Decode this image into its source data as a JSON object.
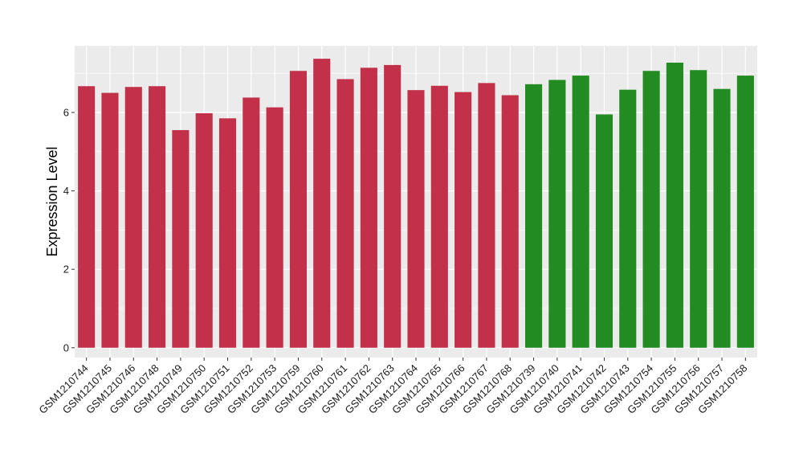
{
  "chart_data": {
    "type": "bar",
    "ylabel": "Expression Level",
    "xlabel": "",
    "title": "",
    "ylim": [
      -0.25,
      7.7
    ],
    "yticks": [
      0,
      2,
      4,
      6
    ],
    "grid": true,
    "legend": "none",
    "categories": [
      "GSM1210744",
      "GSM1210745",
      "GSM1210746",
      "GSM1210748",
      "GSM1210749",
      "GSM1210750",
      "GSM1210751",
      "GSM1210752",
      "GSM1210753",
      "GSM1210759",
      "GSM1210760",
      "GSM1210761",
      "GSM1210762",
      "GSM1210763",
      "GSM1210764",
      "GSM1210765",
      "GSM1210766",
      "GSM1210767",
      "GSM1210768",
      "GSM1210739",
      "GSM1210740",
      "GSM1210741",
      "GSM1210742",
      "GSM1210743",
      "GSM1210754",
      "GSM1210755",
      "GSM1210756",
      "GSM1210757",
      "GSM1210758"
    ],
    "values": [
      6.67,
      6.5,
      6.65,
      6.67,
      5.55,
      5.98,
      5.85,
      6.38,
      6.13,
      7.06,
      7.37,
      6.85,
      7.14,
      7.21,
      6.57,
      6.68,
      6.52,
      6.75,
      6.44,
      6.72,
      6.83,
      6.94,
      5.95,
      6.58,
      7.06,
      7.27,
      7.08,
      6.6,
      6.94
    ],
    "groups": [
      "a",
      "a",
      "a",
      "a",
      "a",
      "a",
      "a",
      "a",
      "a",
      "a",
      "a",
      "a",
      "a",
      "a",
      "a",
      "a",
      "a",
      "a",
      "a",
      "b",
      "b",
      "b",
      "b",
      "b",
      "b",
      "b",
      "b",
      "b",
      "b"
    ],
    "group_colors": {
      "a": "#c3304a",
      "b": "#228b22"
    },
    "panel_background": "#ebebeb",
    "grid_color": "#ffffff"
  }
}
